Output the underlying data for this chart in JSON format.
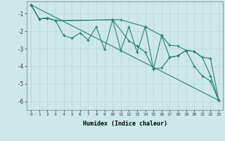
{
  "xlabel": "Humidex (Indice chaleur)",
  "bg_color": "#cce8e8",
  "grid_color": "#b8d8d8",
  "line_color": "#2e7f70",
  "xlim": [
    -0.5,
    23.5
  ],
  "ylim": [
    -6.5,
    -0.3
  ],
  "xticks": [
    0,
    1,
    2,
    3,
    4,
    5,
    6,
    7,
    8,
    9,
    10,
    11,
    12,
    13,
    14,
    15,
    16,
    17,
    18,
    19,
    20,
    21,
    22,
    23
  ],
  "yticks": [
    -6,
    -5,
    -4,
    -3,
    -2,
    -1
  ],
  "series1": [
    [
      0,
      -0.5
    ],
    [
      1,
      -1.3
    ],
    [
      2,
      -1.25
    ],
    [
      3,
      -1.4
    ],
    [
      4,
      -2.25
    ],
    [
      5,
      -2.4
    ],
    [
      6,
      -2.1
    ],
    [
      7,
      -2.5
    ],
    [
      8,
      -1.75
    ],
    [
      9,
      -3.05
    ],
    [
      10,
      -1.35
    ],
    [
      11,
      -3.1
    ],
    [
      12,
      -1.75
    ],
    [
      13,
      -3.2
    ],
    [
      14,
      -1.75
    ],
    [
      15,
      -4.15
    ],
    [
      16,
      -2.25
    ],
    [
      17,
      -3.5
    ],
    [
      18,
      -3.4
    ],
    [
      19,
      -3.1
    ],
    [
      20,
      -4.0
    ],
    [
      21,
      -4.55
    ],
    [
      22,
      -4.85
    ],
    [
      23,
      -5.95
    ]
  ],
  "series2": [
    [
      0,
      -0.5
    ],
    [
      1,
      -1.3
    ],
    [
      2,
      -1.25
    ],
    [
      3,
      -1.4
    ],
    [
      10,
      -1.35
    ],
    [
      11,
      -1.35
    ],
    [
      14,
      -1.75
    ],
    [
      16,
      -2.25
    ],
    [
      17,
      -2.8
    ],
    [
      18,
      -2.85
    ],
    [
      19,
      -3.1
    ],
    [
      20,
      -3.15
    ],
    [
      21,
      -3.5
    ],
    [
      22,
      -3.55
    ],
    [
      23,
      -5.95
    ]
  ],
  "series3_straight": [
    [
      0,
      -0.5
    ],
    [
      23,
      -5.95
    ]
  ],
  "series4": [
    [
      0,
      -0.5
    ],
    [
      1,
      -1.3
    ],
    [
      2,
      -1.25
    ],
    [
      3,
      -1.4
    ],
    [
      10,
      -1.35
    ],
    [
      12,
      -2.55
    ],
    [
      13,
      -2.85
    ],
    [
      14,
      -3.2
    ],
    [
      15,
      -4.15
    ],
    [
      16,
      -4.1
    ],
    [
      17,
      -3.5
    ],
    [
      18,
      -3.4
    ],
    [
      19,
      -3.1
    ],
    [
      20,
      -3.15
    ],
    [
      21,
      -3.5
    ],
    [
      22,
      -4.55
    ],
    [
      23,
      -5.95
    ]
  ]
}
